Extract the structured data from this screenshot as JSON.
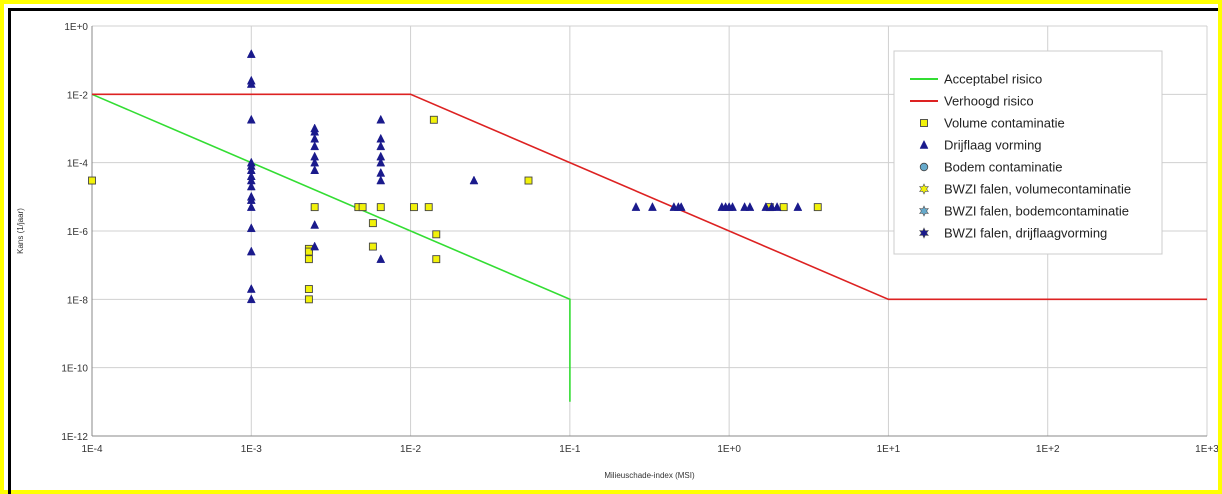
{
  "chart_data": {
    "type": "scatter",
    "x_scale": "log",
    "y_scale": "log",
    "xlim": [
      0.0001,
      1000
    ],
    "ylim": [
      1e-12,
      1
    ],
    "xlabel": "Milieuschade-index (MSI)",
    "ylabel": "Kans (1/jaar)",
    "x_tick_labels": [
      "1E-4",
      "1E-3",
      "1E-2",
      "1E-1",
      "1E+0",
      "1E+1",
      "1E+2",
      "1E+3"
    ],
    "y_tick_labels": [
      "1E-12",
      "1E-10",
      "1E-8",
      "1E-6",
      "1E-4",
      "1E-2",
      "1E+0"
    ],
    "grid": true,
    "legend_position": "top-right",
    "colors": {
      "acceptabel": "#33dd33",
      "verhoogd": "#dd2222",
      "volume": "#f2f20a",
      "drijflaag": "#1a1a8c",
      "bodem": "#66aacc"
    },
    "legend": [
      {
        "label": "Acceptabel risico",
        "symbol": "line",
        "color": "#33dd33"
      },
      {
        "label": "Verhoogd risico",
        "symbol": "line",
        "color": "#dd2222"
      },
      {
        "label": "Volume contaminatie",
        "symbol": "square",
        "color": "#f2f20a"
      },
      {
        "label": "Drijflaag vorming",
        "symbol": "triangle",
        "color": "#1a1a8c"
      },
      {
        "label": "Bodem contaminatie",
        "symbol": "circle",
        "color": "#66aacc"
      },
      {
        "label": "BWZI falen, volumecontaminatie",
        "symbol": "star",
        "color": "#f2f20a"
      },
      {
        "label": "BWZI falen, bodemcontaminatie",
        "symbol": "star",
        "color": "#66aacc"
      },
      {
        "label": "BWZI falen, drijflaagvorming",
        "symbol": "star",
        "color": "#1a1a8c"
      }
    ],
    "lines": [
      {
        "name": "Acceptabel risico",
        "color": "#33dd33",
        "points": [
          [
            0.0001,
            0.01
          ],
          [
            0.1,
            1e-08
          ],
          [
            0.1,
            1e-11
          ]
        ]
      },
      {
        "name": "Verhoogd risico",
        "color": "#dd2222",
        "points": [
          [
            0.0001,
            0.01
          ],
          [
            0.01,
            0.01
          ],
          [
            10,
            1e-08
          ],
          [
            1000,
            1e-08
          ]
        ]
      }
    ],
    "series": [
      {
        "name": "Volume contaminatie",
        "marker": "square",
        "color": "#f2f20a",
        "points": [
          [
            0.0001,
            3e-05
          ],
          [
            0.0023,
            3e-07
          ],
          [
            0.0023,
            2.5e-07
          ],
          [
            0.0023,
            1.5e-07
          ],
          [
            0.0023,
            2e-08
          ],
          [
            0.0023,
            1e-08
          ],
          [
            0.0025,
            5e-06
          ],
          [
            0.0047,
            5e-06
          ],
          [
            0.005,
            5e-06
          ],
          [
            0.0058,
            1.7e-06
          ],
          [
            0.0058,
            3.5e-07
          ],
          [
            0.0065,
            5e-06
          ],
          [
            0.0105,
            5e-06
          ],
          [
            0.013,
            5e-06
          ],
          [
            0.014,
            0.0018
          ],
          [
            0.0145,
            8e-07
          ],
          [
            0.0145,
            1.5e-07
          ],
          [
            0.055,
            3e-05
          ],
          [
            1.8,
            5e-06
          ],
          [
            2.2,
            5e-06
          ],
          [
            3.6,
            5e-06
          ]
        ]
      },
      {
        "name": "Drijflaag vorming",
        "marker": "triangle",
        "color": "#1a1a8c",
        "points": [
          [
            0.001,
            0.15
          ],
          [
            0.001,
            0.025
          ],
          [
            0.001,
            0.02
          ],
          [
            0.001,
            0.0018
          ],
          [
            0.001,
            0.0001
          ],
          [
            0.001,
            8e-05
          ],
          [
            0.001,
            6e-05
          ],
          [
            0.001,
            4e-05
          ],
          [
            0.001,
            3e-05
          ],
          [
            0.001,
            2e-05
          ],
          [
            0.001,
            1e-05
          ],
          [
            0.001,
            8e-06
          ],
          [
            0.001,
            5e-06
          ],
          [
            0.001,
            1.2e-06
          ],
          [
            0.001,
            2.5e-07
          ],
          [
            0.001,
            2e-08
          ],
          [
            0.001,
            1e-08
          ],
          [
            0.0025,
            0.001
          ],
          [
            0.0025,
            0.0008
          ],
          [
            0.0025,
            0.0005
          ],
          [
            0.0025,
            0.0003
          ],
          [
            0.0025,
            0.00015
          ],
          [
            0.0025,
            0.0001
          ],
          [
            0.0025,
            6e-05
          ],
          [
            0.0025,
            1.5e-06
          ],
          [
            0.0025,
            3.5e-07
          ],
          [
            0.0065,
            0.0018
          ],
          [
            0.0065,
            0.0005
          ],
          [
            0.0065,
            0.0003
          ],
          [
            0.0065,
            0.00015
          ],
          [
            0.0065,
            0.0001
          ],
          [
            0.0065,
            5e-05
          ],
          [
            0.0065,
            3e-05
          ],
          [
            0.0065,
            1.5e-07
          ],
          [
            0.025,
            3e-05
          ],
          [
            0.26,
            5e-06
          ],
          [
            0.33,
            5e-06
          ],
          [
            0.45,
            5e-06
          ],
          [
            0.48,
            5e-06
          ],
          [
            0.5,
            5e-06
          ],
          [
            0.9,
            5e-06
          ],
          [
            0.95,
            5e-06
          ],
          [
            1.0,
            5e-06
          ],
          [
            1.05,
            5e-06
          ],
          [
            1.25,
            5e-06
          ],
          [
            1.35,
            5e-06
          ],
          [
            1.7,
            5e-06
          ],
          [
            1.85,
            5e-06
          ],
          [
            2.0,
            5e-06
          ],
          [
            2.7,
            5e-06
          ]
        ]
      }
    ]
  }
}
